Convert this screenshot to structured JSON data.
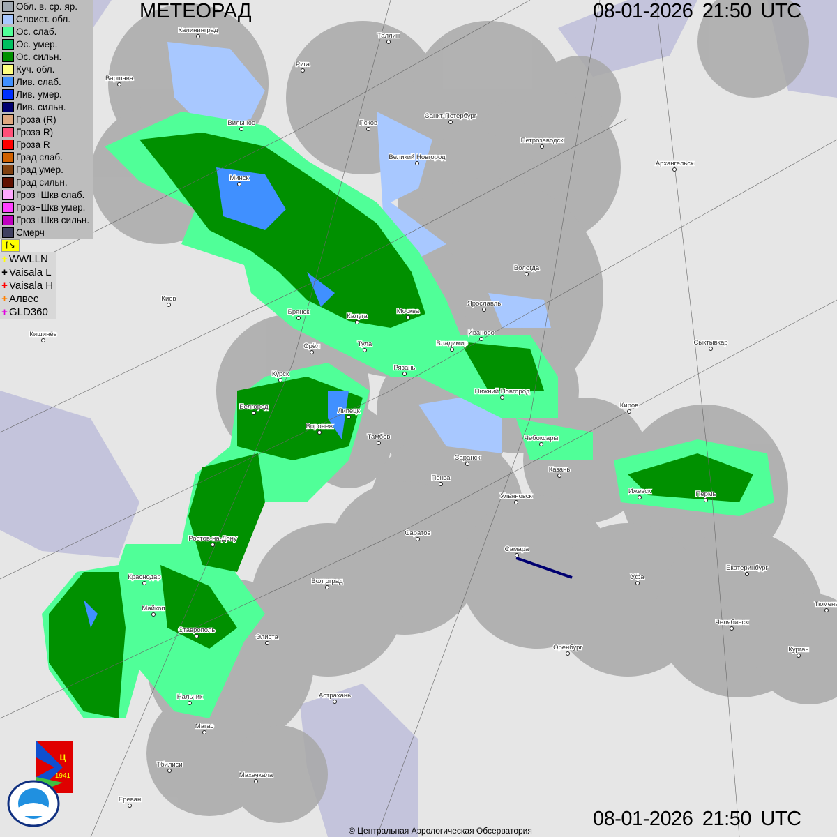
{
  "header": {
    "title": "МЕТЕОРАД",
    "datetime_top": "08-01-2026  21:50 UTC",
    "datetime_bottom": "08-01-2026  21:50 UTC"
  },
  "footer": {
    "copyright": "© Центральная Аэрологическая Обсерватория"
  },
  "legend": [
    {
      "label": "Обл. в. ср. яр.",
      "color": "#a0a8b0"
    },
    {
      "label": "Слоист. обл.",
      "color": "#a8c8ff"
    },
    {
      "label": "Ос. слаб.",
      "color": "#50ff98"
    },
    {
      "label": "Ос. умер.",
      "color": "#00c060"
    },
    {
      "label": "Ос. сильн.",
      "color": "#009000"
    },
    {
      "label": "Куч. обл.",
      "color": "#ffff80"
    },
    {
      "label": "Лив. слаб.",
      "color": "#4090ff"
    },
    {
      "label": "Лив. умер.",
      "color": "#0030ff"
    },
    {
      "label": "Лив. сильн.",
      "color": "#000070"
    },
    {
      "label": "Гроза (R)",
      "color": "#e0a880"
    },
    {
      "label": "Гроза R)",
      "color": "#ff5078"
    },
    {
      "label": "Гроза R",
      "color": "#ff0000"
    },
    {
      "label": "Град слаб.",
      "color": "#d06000"
    },
    {
      "label": "Град умер.",
      "color": "#804010"
    },
    {
      "label": "Град сильн.",
      "color": "#601000"
    },
    {
      "label": "Гроз+Шкв слаб.",
      "color": "#ffa8ff"
    },
    {
      "label": "Гроз+Шкв умер.",
      "color": "#ff40ff"
    },
    {
      "label": "Гроз+Шкв сильн.",
      "color": "#c000c0"
    },
    {
      "label": "Смерч",
      "color": "#404060"
    }
  ],
  "lightning": [
    {
      "label": "WWLLN",
      "color": "#ffff00"
    },
    {
      "label": "Vaisala L",
      "color": "#000000"
    },
    {
      "label": "Vaisala H",
      "color": "#ff0000"
    },
    {
      "label": "Алвес",
      "color": "#ff8000"
    },
    {
      "label": "GLD360",
      "color": "#e000e0"
    }
  ],
  "logos": {
    "cao": "ЦАО 1941",
    "roshydromet": "РОСГИДРОМЕТ ROSHYDROMET"
  },
  "cities": [
    [
      "Калининград",
      284,
      52
    ],
    [
      "Таллин",
      557,
      60
    ],
    [
      "Рига",
      434,
      101
    ],
    [
      "Варшава",
      171,
      121
    ],
    [
      "Санкт-Петербург",
      646,
      175
    ],
    [
      "Псков",
      528,
      185
    ],
    [
      "Вильнюс",
      346,
      185
    ],
    [
      "Великий Новгород",
      598,
      234
    ],
    [
      "Петрозаводск",
      777,
      210
    ],
    [
      "Архангельск",
      967,
      243
    ],
    [
      "Минск",
      343,
      264
    ],
    [
      "Вологда",
      755,
      393
    ],
    [
      "Ярославль",
      694,
      444
    ],
    [
      "Москва",
      585,
      455
    ],
    [
      "Киев",
      242,
      437
    ],
    [
      "Брянск",
      428,
      456
    ],
    [
      "Калуга",
      512,
      462
    ],
    [
      "Иваново",
      690,
      486
    ],
    [
      "Тула",
      523,
      502
    ],
    [
      "Владимир",
      648,
      501
    ],
    [
      "Кишинёв",
      62,
      488
    ],
    [
      "Орёл",
      447,
      505
    ],
    [
      "Сыктывкар",
      1019,
      500
    ],
    [
      "Рязань",
      580,
      536
    ],
    [
      "Курск",
      402,
      545
    ],
    [
      "Нижний Новгород",
      720,
      570
    ],
    [
      "Киров",
      902,
      590
    ],
    [
      "Белгород",
      364,
      592
    ],
    [
      "Липецк",
      500,
      598
    ],
    [
      "Воронеж",
      458,
      620
    ],
    [
      "Тамбов",
      543,
      635
    ],
    [
      "Чебоксары",
      776,
      637
    ],
    [
      "Саранск",
      670,
      665
    ],
    [
      "Казань",
      802,
      682
    ],
    [
      "Пенза",
      632,
      694
    ],
    [
      "Ижевск",
      917,
      713
    ],
    [
      "Пермь",
      1012,
      717
    ],
    [
      "Ульяновск",
      740,
      720
    ],
    [
      "Ростов-на-Дону",
      305,
      781
    ],
    [
      "Саратов",
      599,
      773
    ],
    [
      "Самара",
      741,
      796
    ],
    [
      "Уфа",
      914,
      836
    ],
    [
      "Екатеринбург",
      1071,
      823
    ],
    [
      "Волгоград",
      469,
      842
    ],
    [
      "Краснодар",
      207,
      836
    ],
    [
      "Майкоп",
      220,
      881
    ],
    [
      "Тюмень",
      1185,
      875
    ],
    [
      "Челябинск",
      1049,
      901
    ],
    [
      "Ставрополь",
      282,
      912
    ],
    [
      "Элиста",
      383,
      922
    ],
    [
      "Оренбург",
      814,
      937
    ],
    [
      "Курган",
      1145,
      940
    ],
    [
      "Астрахань",
      480,
      1006
    ],
    [
      "Нальчик",
      272,
      1008
    ],
    [
      "Магас",
      293,
      1050
    ],
    [
      "Тбилиси",
      243,
      1105
    ],
    [
      "Махачкала",
      367,
      1120
    ],
    [
      "Ереван",
      186,
      1155
    ]
  ]
}
